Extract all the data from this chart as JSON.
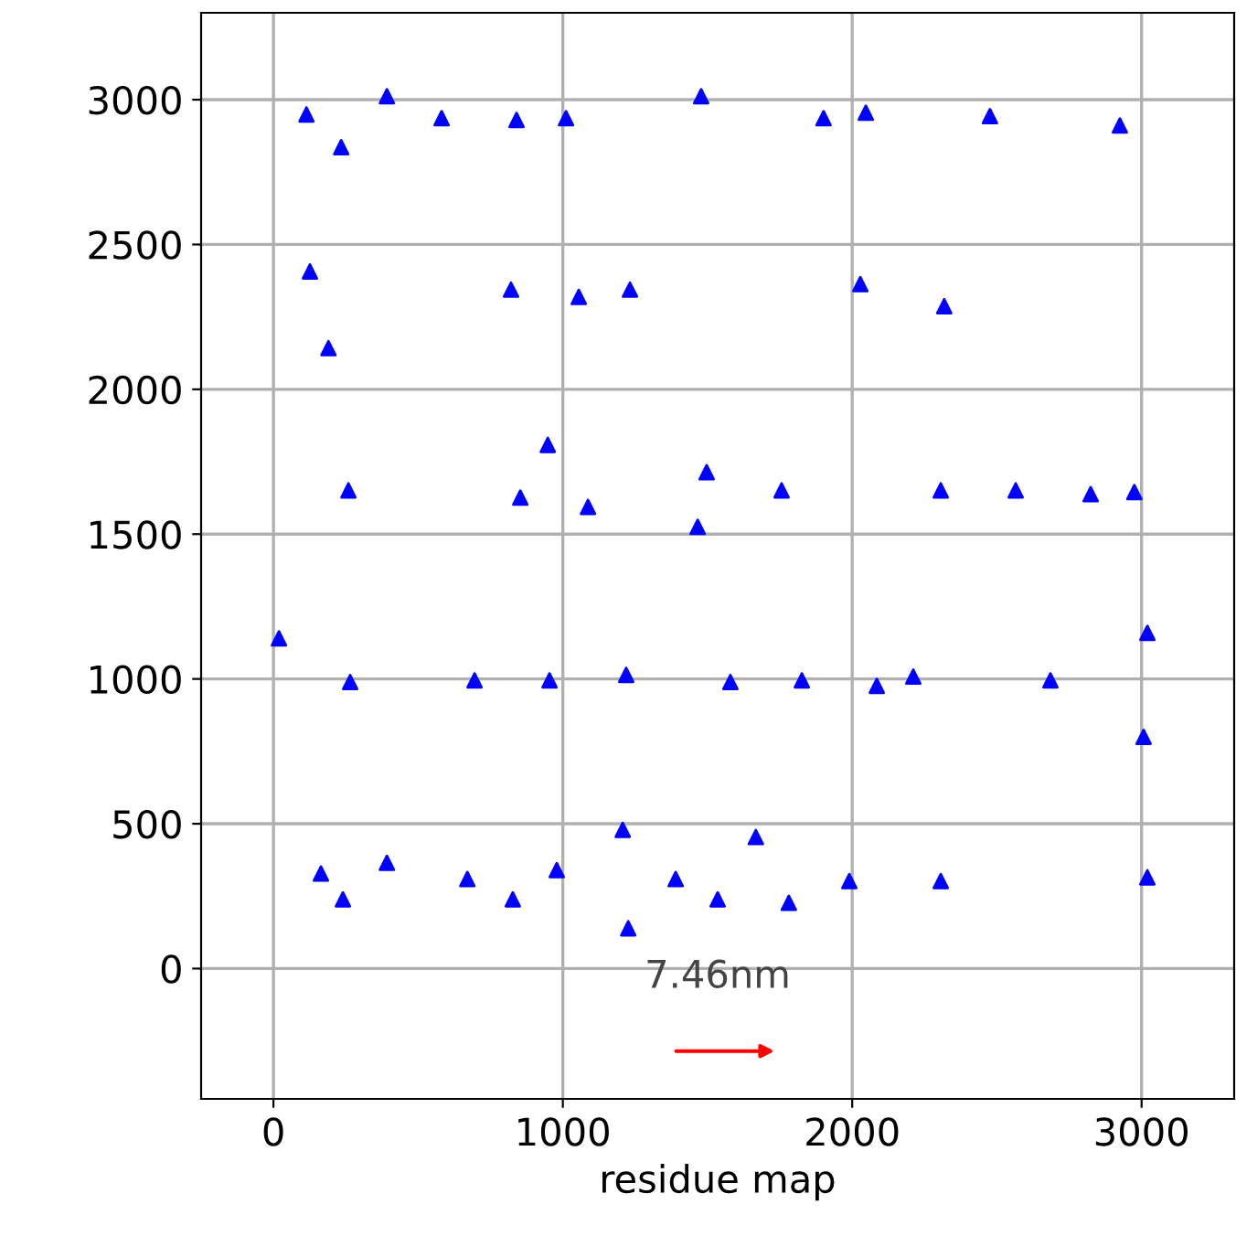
{
  "chart_data": {
    "type": "scatter",
    "xlabel": "residue map",
    "annotations": [
      "7.46nm"
    ],
    "x": [
      114,
      392,
      234,
      581,
      840,
      1011,
      1478,
      1901,
      2047,
      2476,
      2925,
      126,
      190,
      821,
      1055,
      1232,
      2028,
      2318,
      948,
      259,
      853,
      1087,
      1497,
      1756,
      1466,
      2306,
      2565,
      2824,
      2975,
      19,
      265,
      695,
      954,
      1219,
      1579,
      1826,
      2085,
      2211,
      2685,
      3020,
      3007,
      164,
      240,
      392,
      670,
      827,
      979,
      1207,
      1226,
      1390,
      1535,
      1667,
      1781,
      1990,
      2306,
      3020
    ],
    "values": [
      2949,
      3012,
      2836,
      2936,
      2930,
      2936,
      3012,
      2936,
      2955,
      2943,
      2911,
      2407,
      2142,
      2344,
      2319,
      2344,
      2363,
      2287,
      1808,
      1651,
      1626,
      1594,
      1714,
      1651,
      1525,
      1651,
      1651,
      1638,
      1645,
      1140,
      989,
      995,
      995,
      1014,
      989,
      995,
      976,
      1008,
      995,
      1159,
      800,
      328,
      239,
      365,
      309,
      239,
      340,
      479,
      139,
      309,
      239,
      454,
      227,
      302,
      302,
      315
    ],
    "color": "#0000ff",
    "marker": "triangle",
    "xlim": [
      -250,
      3320
    ],
    "ylim": [
      -450,
      3300
    ],
    "xticks": [
      0,
      1000,
      2000,
      3000
    ],
    "yticks": [
      0,
      500,
      1000,
      1500,
      2000,
      2500,
      3000
    ],
    "grid": true
  }
}
